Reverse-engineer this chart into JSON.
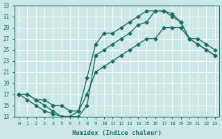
{
  "xlabel": "Humidex (Indice chaleur)",
  "bg_color": "#cce8e4",
  "grid_color": "#ffffff",
  "line_color": "#1a6e64",
  "xlim": [
    -0.5,
    23.5
  ],
  "ylim": [
    13,
    33
  ],
  "xticks": [
    0,
    1,
    2,
    3,
    4,
    5,
    6,
    7,
    8,
    9,
    10,
    11,
    12,
    13,
    14,
    15,
    16,
    17,
    18,
    19,
    20,
    21,
    22,
    23
  ],
  "yticks": [
    13,
    15,
    17,
    19,
    21,
    23,
    25,
    27,
    29,
    31,
    33
  ],
  "line1_x": [
    0,
    1,
    2,
    3,
    4,
    5,
    6,
    7,
    8,
    9,
    10,
    11,
    12,
    13,
    14,
    15,
    16,
    17,
    18,
    19,
    20,
    21,
    22,
    23
  ],
  "line1_y": [
    17,
    17,
    16,
    15,
    14,
    13,
    13,
    14,
    20,
    26,
    28,
    28,
    29,
    30,
    31,
    32,
    32,
    32,
    31,
    30,
    27,
    27,
    26,
    25
  ],
  "line2_x": [
    0,
    1,
    2,
    3,
    4,
    5,
    6,
    7,
    8,
    9,
    10,
    11,
    12,
    13,
    14,
    15,
    16,
    17,
    18,
    19,
    20,
    21,
    22,
    23
  ],
  "line2_y": [
    17,
    16,
    15,
    14,
    13.5,
    13,
    13,
    13,
    15,
    24,
    25,
    26,
    27,
    28,
    29.5,
    30,
    32,
    32,
    31.5,
    30,
    27,
    26,
    25,
    24
  ],
  "line3_x": [
    0,
    1,
    2,
    3,
    4,
    5,
    6,
    7,
    8,
    9,
    10,
    11,
    12,
    13,
    14,
    15,
    16,
    17,
    18,
    19,
    20,
    21,
    22,
    23
  ],
  "line3_y": [
    17,
    17,
    16,
    16,
    15,
    15,
    14,
    14,
    17,
    21,
    22,
    23,
    24,
    25,
    26,
    27,
    27,
    29,
    29,
    29,
    27,
    26,
    25,
    24
  ],
  "marker": "D",
  "marker_size": 2.5,
  "linewidth": 1.0
}
